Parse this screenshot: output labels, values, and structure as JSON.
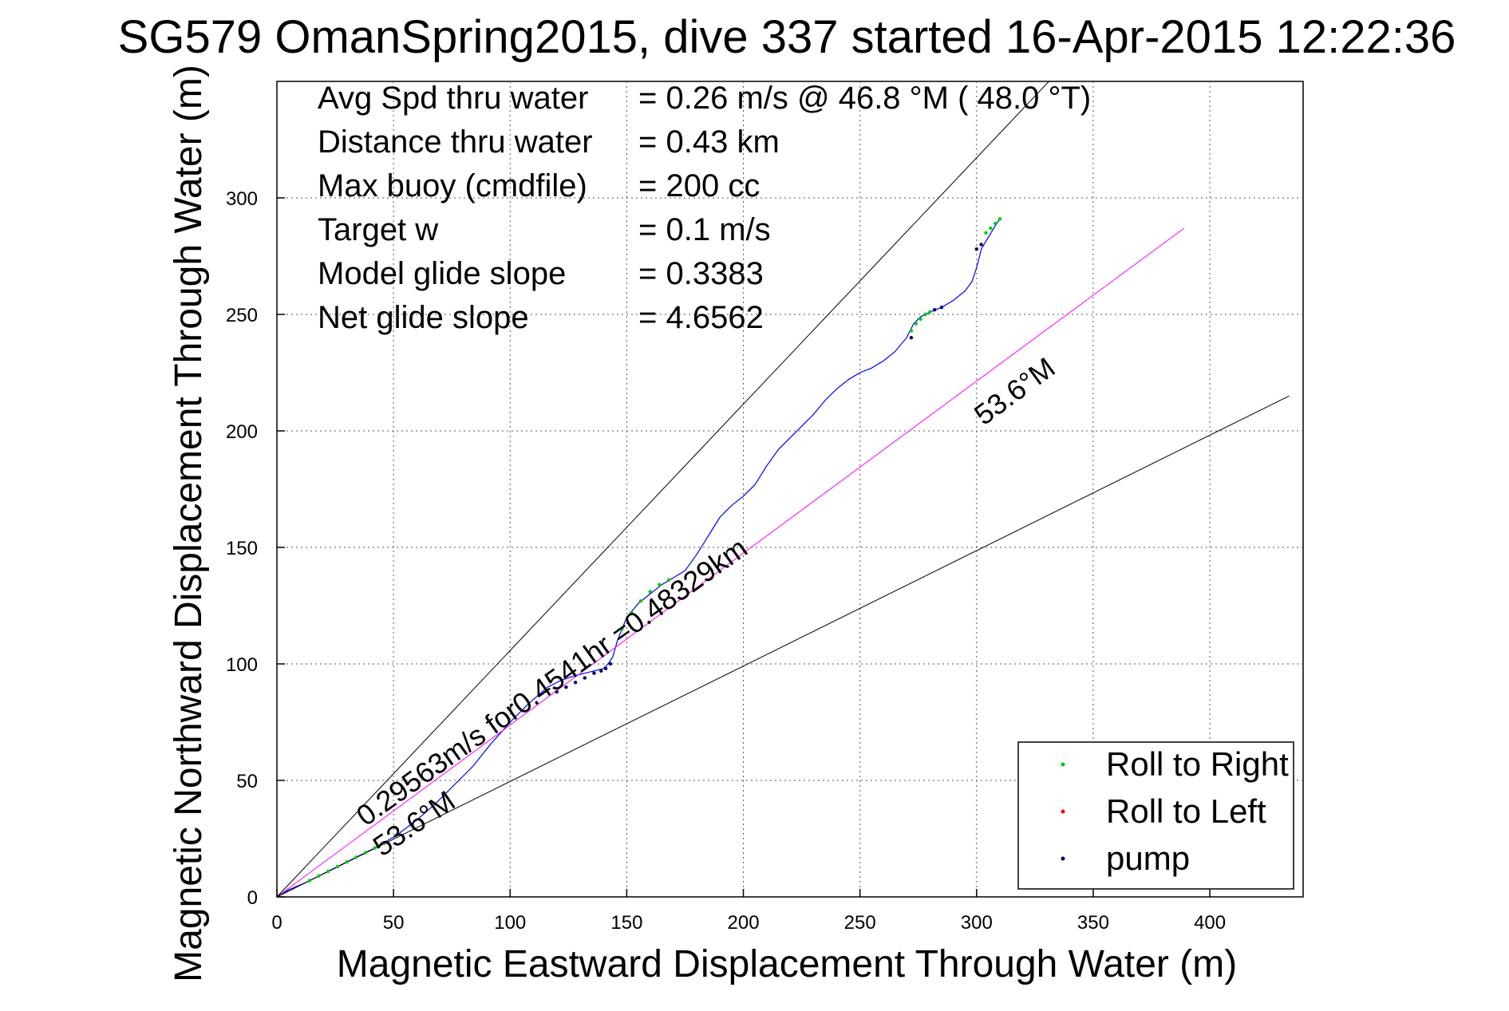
{
  "chart_data": {
    "type": "line",
    "title": "SG579 OmanSpring2015, dive 337 started 16-Apr-2015 12:22:36",
    "xlabel": "Magnetic Eastward Displacement Through Water (m)",
    "ylabel": "Magnetic Northward Displacement Through Water (m)",
    "xlim": [
      0,
      440
    ],
    "ylim": [
      0,
      350
    ],
    "xticks": [
      "0",
      "50",
      "100",
      "150",
      "200",
      "250",
      "300",
      "350",
      "400"
    ],
    "yticks": [
      "0",
      "50",
      "100",
      "150",
      "200",
      "250",
      "300"
    ],
    "xtick_values": [
      0,
      50,
      100,
      150,
      200,
      250,
      300,
      350,
      400
    ],
    "ytick_values": [
      0,
      50,
      100,
      150,
      200,
      250,
      300
    ],
    "grid": true,
    "info": {
      "rows": [
        {
          "label": "Avg Spd thru water",
          "value": "=  0.26 m/s @  46.8 °M ( 48.0 °T)"
        },
        {
          "label": "Distance thru water",
          "value": "=  0.43 km"
        },
        {
          "label": "Max buoy (cmdfile)",
          "value": "= 200 cc"
        },
        {
          "label": "Target w",
          "value": "= 0.1 m/s"
        },
        {
          "label": "Model glide slope",
          "value": "= 0.3383"
        },
        {
          "label": "Net glide slope",
          "value": "= 4.6562"
        }
      ]
    },
    "annotations": {
      "course_line_label": "0.29563m/s for0.4541hr =0.48329km",
      "heading_label_upper": "53.6°M",
      "heading_label_lower": "53.6°M"
    },
    "series": [
      {
        "name": "track",
        "color": "#0000ff",
        "x": [
          0,
          5,
          12,
          20,
          28,
          36,
          44,
          52,
          60,
          68,
          76,
          84,
          92,
          100,
          108,
          116,
          122,
          128,
          132,
          136,
          140,
          142,
          144,
          146,
          150,
          155,
          160,
          165,
          170,
          175,
          180,
          185,
          190,
          195,
          200,
          205,
          210,
          215,
          220,
          225,
          230,
          235,
          240,
          245,
          250,
          255,
          260,
          265,
          270,
          273,
          276,
          280,
          285,
          290,
          295,
          298,
          300,
          302,
          305,
          308,
          310
        ],
        "y": [
          0,
          3,
          6,
          10,
          14,
          18,
          22,
          27,
          33,
          40,
          48,
          56,
          66,
          75,
          83,
          90,
          93,
          95,
          96,
          97,
          98,
          100,
          103,
          110,
          120,
          126,
          130,
          134,
          137,
          140,
          147,
          155,
          163,
          168,
          172,
          177,
          185,
          192,
          197,
          202,
          207,
          213,
          218,
          222,
          225,
          227,
          230,
          234,
          240,
          246,
          249,
          251,
          253,
          256,
          260,
          264,
          270,
          278,
          283,
          288,
          291
        ]
      },
      {
        "name": "Roll to Right",
        "color": "#00cc00",
        "marker": true,
        "x": [
          14,
          18,
          22,
          26,
          30,
          34,
          38,
          42,
          46,
          148,
          152,
          156,
          160,
          164,
          168,
          272,
          274,
          276,
          278,
          280,
          304,
          306,
          308,
          310
        ],
        "y": [
          7,
          9,
          11,
          13,
          15,
          17,
          19,
          21,
          23,
          115,
          122,
          127,
          131,
          134,
          136,
          243,
          246,
          248,
          250,
          251,
          285,
          287,
          289,
          291
        ]
      },
      {
        "name": "Roll to Left",
        "color": "#ff0000",
        "marker": true,
        "x": [],
        "y": []
      },
      {
        "name": "pump",
        "color": "#000066",
        "marker": true,
        "x": [
          120,
          124,
          128,
          132,
          136,
          139,
          141,
          143,
          272,
          282,
          285,
          300,
          302
        ],
        "y": [
          88,
          90,
          92,
          94,
          96,
          97,
          98,
          100,
          240,
          252,
          253,
          278,
          280
        ]
      },
      {
        "name": "course line",
        "color": "#ff00ff",
        "x": [
          0,
          389
        ],
        "y": [
          0,
          287
        ]
      },
      {
        "name": "upper bound",
        "color": "#000000",
        "x": [
          0,
          331
        ],
        "y": [
          0,
          350
        ]
      },
      {
        "name": "lower bound",
        "color": "#000000",
        "x": [
          0,
          434
        ],
        "y": [
          0,
          215
        ]
      }
    ],
    "legend": {
      "position": "bottom-right",
      "entries": [
        {
          "label": "Roll to Right",
          "color": "#00cc00"
        },
        {
          "label": "Roll to Left",
          "color": "#ff0000"
        },
        {
          "label": "pump",
          "color": "#000066"
        }
      ]
    }
  }
}
